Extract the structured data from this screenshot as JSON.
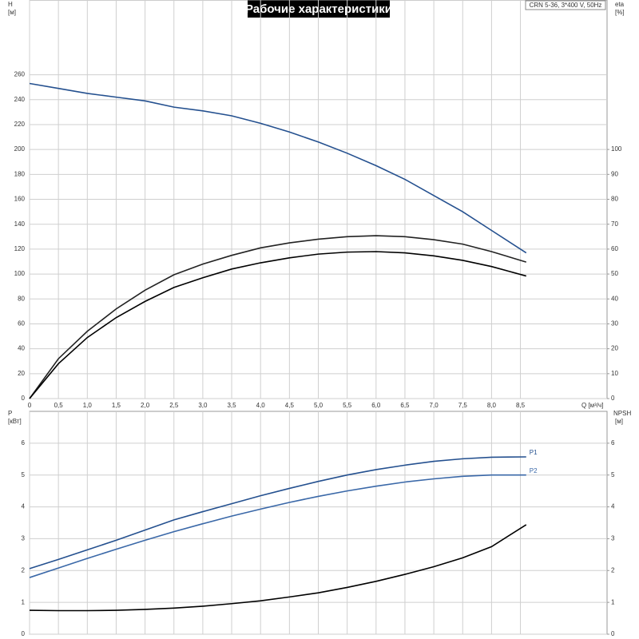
{
  "chart_data": [
    {
      "type": "line",
      "title": "Рабочие характеристики",
      "annotation": "CRN 5-36, 3*400 V, 50Hz",
      "x_label": "Q [м³/ч]",
      "y_label": "H",
      "y_unit": "[м]",
      "y2_label": "eta",
      "y2_unit": "[%]",
      "x": [
        0,
        0.5,
        1.0,
        1.5,
        2.0,
        2.5,
        3.0,
        3.5,
        4.0,
        4.5,
        5.0,
        5.5,
        6.0,
        6.5,
        7.0,
        7.5,
        8.0,
        8.6
      ],
      "xlim": [
        0,
        10
      ],
      "ylim": [
        0,
        320
      ],
      "y2lim": [
        0,
        160
      ],
      "xticks": [
        0,
        {
          "value": 0.5,
          "label": "0,5"
        },
        {
          "value": 1.0,
          "label": "1,0"
        },
        {
          "value": 1.5,
          "label": "1,5"
        },
        {
          "value": 2.0,
          "label": "2,0"
        },
        {
          "value": 2.5,
          "label": "2,5"
        },
        {
          "value": 3.0,
          "label": "3,0"
        },
        {
          "value": 3.5,
          "label": "3,5"
        },
        {
          "value": 4.0,
          "label": "4,0"
        },
        {
          "value": 4.5,
          "label": "4,5"
        },
        {
          "value": 5.0,
          "label": "5,0"
        },
        {
          "value": 5.5,
          "label": "5,5"
        },
        {
          "value": 6.0,
          "label": "6,0"
        },
        {
          "value": 6.5,
          "label": "6,5"
        },
        {
          "value": 7.0,
          "label": "7,0"
        },
        {
          "value": 7.5,
          "label": "7,5"
        },
        {
          "value": 8.0,
          "label": "8,0"
        },
        {
          "value": 8.5,
          "label": "8,5"
        }
      ],
      "yticks": [
        0,
        20,
        40,
        60,
        80,
        100,
        120,
        140,
        160,
        180,
        200,
        220,
        240,
        260
      ],
      "y2ticks": [
        0,
        10,
        20,
        30,
        40,
        50,
        60,
        70,
        80,
        90,
        100
      ],
      "grid": true,
      "series": [
        {
          "color": "#24508f",
          "values": [
            253,
            249,
            245,
            242,
            239,
            234,
            231,
            227,
            221,
            214,
            206,
            197,
            187,
            176,
            163,
            150,
            135,
            117
          ]
        },
        {
          "color": "#222222",
          "axis": "y2",
          "values": [
            0,
            16,
            27,
            36,
            43.5,
            49.7,
            54,
            57.5,
            60.5,
            62.5,
            64,
            65,
            65.4,
            65,
            63.8,
            62,
            59,
            54.8
          ]
        },
        {
          "color": "#000000",
          "axis": "y2",
          "values": [
            0,
            14,
            24.5,
            32.5,
            39,
            44.6,
            48.5,
            52,
            54.5,
            56.5,
            58,
            58.8,
            59,
            58.5,
            57.3,
            55.5,
            53,
            49.2
          ]
        }
      ]
    },
    {
      "type": "line",
      "y_label": "P",
      "y_unit": "[кВт]",
      "y2_label": "NPSH",
      "y2_unit": "[м]",
      "x": [
        0,
        0.5,
        1.0,
        1.5,
        2.0,
        2.5,
        3.0,
        3.5,
        4.0,
        4.5,
        5.0,
        5.5,
        6.0,
        6.5,
        7.0,
        7.5,
        8.0,
        8.6
      ],
      "xlim": [
        0,
        10
      ],
      "ylim": [
        0,
        7
      ],
      "y2lim": [
        0,
        7
      ],
      "xticks": [
        0,
        0.5,
        1.0,
        1.5,
        2.0,
        2.5,
        3.0,
        3.5,
        4.0,
        4.5,
        5.0,
        5.5,
        6.0,
        6.5,
        7.0,
        7.5,
        8.0,
        8.5
      ],
      "yticks": [
        0,
        1,
        2,
        3,
        4,
        5,
        6
      ],
      "y2ticks": [
        0,
        1,
        2,
        3,
        4,
        5,
        6
      ],
      "grid": true,
      "series": [
        {
          "name": "P1",
          "color": "#24508f",
          "values": [
            2.06,
            2.35,
            2.65,
            2.95,
            3.27,
            3.59,
            3.85,
            4.1,
            4.35,
            4.58,
            4.8,
            5.0,
            5.17,
            5.31,
            5.43,
            5.51,
            5.56,
            5.57
          ]
        },
        {
          "name": "P2",
          "color": "#3a68a8",
          "values": [
            1.78,
            2.08,
            2.38,
            2.67,
            2.95,
            3.22,
            3.47,
            3.71,
            3.93,
            4.14,
            4.33,
            4.5,
            4.65,
            4.78,
            4.88,
            4.96,
            5.0,
            5.0
          ]
        },
        {
          "color": "#000000",
          "axis": "y2",
          "values": [
            0.75,
            0.74,
            0.74,
            0.75,
            0.78,
            0.82,
            0.88,
            0.96,
            1.05,
            1.17,
            1.3,
            1.47,
            1.66,
            1.88,
            2.12,
            2.4,
            2.75,
            3.44
          ]
        }
      ]
    }
  ]
}
